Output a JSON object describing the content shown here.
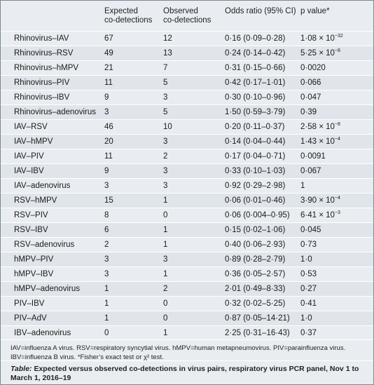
{
  "headers": {
    "expected_line1": "Expected",
    "expected_line2": "co-detections",
    "observed_line1": "Observed",
    "observed_line2": "co-detections",
    "odds": "Odds ratio (95% CI)",
    "pvalue": "p value*"
  },
  "rows": [
    {
      "pair": "Rhinovirus–IAV",
      "expected": "67",
      "observed": "12",
      "odds": "0·16 (0·09–0·28)",
      "p_base": "1·08 × 10",
      "p_exp": "−32"
    },
    {
      "pair": "Rhinovirus–RSV",
      "expected": "49",
      "observed": "13",
      "odds": "0·24 (0·14–0·42)",
      "p_base": "5·25 × 10",
      "p_exp": "−8"
    },
    {
      "pair": "Rhinovirus–hMPV",
      "expected": "21",
      "observed": "7",
      "odds": "0·31 (0·15–0·66)",
      "p_base": "0·0020",
      "p_exp": ""
    },
    {
      "pair": "Rhinovirus–PIV",
      "expected": "11",
      "observed": "5",
      "odds": "0·42 (0·17–1·01)",
      "p_base": "0·066",
      "p_exp": ""
    },
    {
      "pair": "Rhinovirus–IBV",
      "expected": "9",
      "observed": "3",
      "odds": "0·30 (0·10–0·96)",
      "p_base": "0·047",
      "p_exp": ""
    },
    {
      "pair": "Rhinovirus–adenovirus",
      "expected": "3",
      "observed": "5",
      "odds": "1·50 (0·59–3·79)",
      "p_base": "0·39",
      "p_exp": ""
    },
    {
      "pair": "IAV–RSV",
      "expected": "46",
      "observed": "10",
      "odds": "0·20 (0·11–0·37)",
      "p_base": "2·58 × 10",
      "p_exp": "−8"
    },
    {
      "pair": "IAV–hMPV",
      "expected": "20",
      "observed": "3",
      "odds": "0·14 (0·04–0·44)",
      "p_base": "1·43 × 10",
      "p_exp": "−4"
    },
    {
      "pair": "IAV–PIV",
      "expected": "11",
      "observed": "2",
      "odds": "0·17 (0·04–0·71)",
      "p_base": "0·0091",
      "p_exp": ""
    },
    {
      "pair": "IAV–IBV",
      "expected": "9",
      "observed": "3",
      "odds": "0·33 (0·10–1·03)",
      "p_base": "0·067",
      "p_exp": ""
    },
    {
      "pair": "IAV–adenovirus",
      "expected": "3",
      "observed": "3",
      "odds": "0·92 (0·29–2·98)",
      "p_base": "1",
      "p_exp": ""
    },
    {
      "pair": "RSV–hMPV",
      "expected": "15",
      "observed": "1",
      "odds": "0·06 (0·01–0·46)",
      "p_base": "3·90 × 10",
      "p_exp": "−4"
    },
    {
      "pair": "RSV–PIV",
      "expected": "8",
      "observed": "0",
      "odds": "0·06 (0·004–0·95)",
      "p_base": "6·41 × 10",
      "p_exp": "−3"
    },
    {
      "pair": "RSV–IBV",
      "expected": "6",
      "observed": "1",
      "odds": "0·15 (0·02–1·06)",
      "p_base": "0·045",
      "p_exp": ""
    },
    {
      "pair": "RSV–adenovirus",
      "expected": "2",
      "observed": "1",
      "odds": "0·40 (0·06–2·93)",
      "p_base": "0·73",
      "p_exp": ""
    },
    {
      "pair": "hMPV–PIV",
      "expected": "3",
      "observed": "3",
      "odds": "0·89 (0·28–2·79)",
      "p_base": "1·0",
      "p_exp": ""
    },
    {
      "pair": "hMPV–IBV",
      "expected": "3",
      "observed": "1",
      "odds": "0·36 (0·05–2·57)",
      "p_base": "0·53",
      "p_exp": ""
    },
    {
      "pair": "hMPV–adenovirus",
      "expected": "1",
      "observed": "2",
      "odds": "2·01 (0·49–8·33)",
      "p_base": "0·27",
      "p_exp": ""
    },
    {
      "pair": "PIV–IBV",
      "expected": "1",
      "observed": "0",
      "odds": "0·32 (0·02–5·25)",
      "p_base": "0·41",
      "p_exp": ""
    },
    {
      "pair": "PIV–AdV",
      "expected": "1",
      "observed": "0",
      "odds": "0·87 (0·05–14·21)",
      "p_base": "1·0",
      "p_exp": ""
    },
    {
      "pair": "IBV–adenovirus",
      "expected": "0",
      "observed": "1",
      "odds": "2·25 (0·31–16·43)",
      "p_base": "0·37",
      "p_exp": ""
    }
  ],
  "footnote_line1": "IAV=influenza A virus. RSV=respiratory syncytial virus. hMPV=human metapneumovirus. PIV=parainfluenza virus.",
  "footnote_line2": "IBV=influenza B virus. *Fisher’s exact test or χ² test.",
  "caption_label": "Table:",
  "caption_text": " Expected versus observed co-detections in virus pairs, respiratory virus PCR panel, Nov 1 to March 1, 2016–19"
}
